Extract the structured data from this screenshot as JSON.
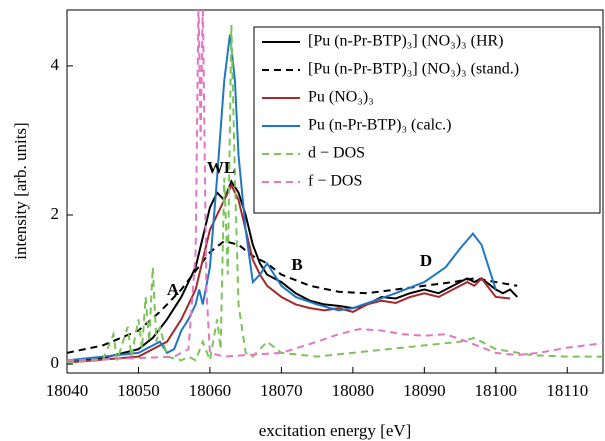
{
  "chart_data": {
    "type": "line",
    "x_label": "excitation energy [eV]",
    "y_label": "intensity [arb. units]",
    "xlim": [
      18040,
      18115
    ],
    "ylim": [
      -0.12,
      4.75
    ],
    "xticks": [
      18040,
      18050,
      18060,
      18070,
      18080,
      18090,
      18100,
      18110
    ],
    "yticks": [
      0,
      2,
      4
    ],
    "legend": "upper right",
    "annotations": [
      "A",
      "WL",
      "B",
      "D"
    ],
    "series": [
      {
        "name": "[Pu (n-Pr-BTP)₃] (NO₃)₃ (HR)",
        "color": "#000000",
        "dashed": false,
        "x": [
          18040,
          18045,
          18050,
          18052,
          18054,
          18056,
          18058,
          18059,
          18060,
          18061,
          18062,
          18063,
          18064,
          18065,
          18066,
          18067,
          18068,
          18069,
          18070,
          18072,
          18074,
          18076,
          18078,
          18080,
          18082,
          18084,
          18086,
          18088,
          18090,
          18092,
          18094,
          18096,
          18097,
          18098,
          18100,
          18101,
          18102,
          18103
        ],
        "values": [
          0.05,
          0.08,
          0.2,
          0.35,
          0.6,
          0.9,
          1.3,
          1.7,
          2.1,
          2.3,
          2.2,
          2.45,
          2.3,
          2.0,
          1.6,
          1.35,
          1.2,
          1.15,
          1.1,
          0.95,
          0.85,
          0.8,
          0.78,
          0.75,
          0.8,
          0.9,
          0.88,
          0.95,
          1.0,
          0.95,
          1.05,
          1.15,
          1.1,
          1.15,
          1.0,
          0.95,
          1.0,
          0.9
        ]
      },
      {
        "name": "[Pu (n-Pr-BTP)₃] (NO₃)₃ (stand.)",
        "color": "#000000",
        "dashed": true,
        "x": [
          18040,
          18045,
          18050,
          18053,
          18056,
          18058,
          18060,
          18062,
          18064,
          18066,
          18068,
          18070,
          18074,
          18078,
          18082,
          18086,
          18090,
          18094,
          18097,
          18100,
          18103
        ],
        "values": [
          0.15,
          0.25,
          0.45,
          0.7,
          1.0,
          1.25,
          1.5,
          1.65,
          1.6,
          1.45,
          1.35,
          1.2,
          1.05,
          0.97,
          0.95,
          1.0,
          1.05,
          1.1,
          1.15,
          1.1,
          1.05
        ]
      },
      {
        "name": "Pu (NO₃)₃",
        "color": "#a52a2a",
        "dashed": false,
        "x": [
          18040,
          18050,
          18054,
          18056,
          18058,
          18059,
          18060,
          18061,
          18062,
          18063,
          18064,
          18065,
          18066,
          18067,
          18068,
          18070,
          18072,
          18074,
          18076,
          18078,
          18080,
          18082,
          18084,
          18086,
          18088,
          18090,
          18092,
          18094,
          18096,
          18097,
          18098,
          18100,
          18102
        ],
        "values": [
          0.02,
          0.1,
          0.3,
          0.6,
          1.0,
          1.4,
          1.8,
          2.0,
          2.2,
          2.4,
          2.2,
          1.8,
          1.4,
          1.2,
          1.05,
          0.9,
          0.8,
          0.75,
          0.72,
          0.75,
          0.7,
          0.8,
          0.85,
          0.82,
          0.9,
          0.95,
          0.9,
          1.0,
          1.1,
          1.05,
          1.15,
          0.9,
          0.88
        ]
      },
      {
        "name": "Pu (n-Pr-BTP)₃ (calc.)",
        "color": "#1f77c4",
        "dashed": false,
        "x": [
          18040,
          18050,
          18053,
          18054,
          18055,
          18056,
          18057,
          18058,
          18058.5,
          18059,
          18060,
          18061,
          18062,
          18062.8,
          18063.5,
          18064,
          18065,
          18066,
          18067,
          18068,
          18069,
          18070,
          18072,
          18075,
          18078,
          18080,
          18083,
          18086,
          18090,
          18093,
          18095,
          18096.8,
          18098,
          18099,
          18100
        ],
        "values": [
          0.05,
          0.15,
          0.3,
          0.15,
          0.2,
          0.45,
          0.6,
          0.8,
          1.0,
          0.8,
          1.3,
          2.5,
          3.8,
          4.42,
          3.8,
          2.8,
          1.8,
          1.1,
          1.2,
          1.35,
          1.2,
          1.05,
          0.9,
          0.8,
          0.72,
          0.75,
          0.85,
          0.95,
          1.1,
          1.3,
          1.55,
          1.75,
          1.6,
          1.3,
          1.0
        ]
      },
      {
        "name": "d − DOS",
        "color": "#7cc45a",
        "dashed": true,
        "x": [
          18040,
          18045,
          18046.5,
          18047,
          18048.5,
          18049,
          18050,
          18050.5,
          18051,
          18051.5,
          18052,
          18052.5,
          18053,
          18054,
          18056,
          18057,
          18058,
          18059,
          18060,
          18061,
          18061.5,
          18062,
          18062.5,
          18063,
          18063.5,
          18064,
          18065,
          18066,
          18068,
          18070,
          18075,
          18080,
          18085,
          18090,
          18095,
          18097,
          18100,
          18105,
          18110,
          18115
        ],
        "values": [
          0.02,
          0.05,
          0.4,
          0.05,
          0.5,
          0.1,
          0.6,
          0.2,
          0.9,
          0.3,
          1.3,
          0.3,
          0.5,
          0.1,
          0.05,
          0.1,
          0.05,
          0.3,
          0.05,
          0.6,
          0.2,
          2.5,
          1.2,
          4.55,
          2.5,
          0.8,
          0.15,
          0.1,
          0.3,
          0.15,
          0.1,
          0.15,
          0.2,
          0.25,
          0.3,
          0.35,
          0.2,
          0.12,
          0.1,
          0.1
        ]
      },
      {
        "name": "f − DOS",
        "color": "#e377c2",
        "dashed": true,
        "x": [
          18040,
          18050,
          18055,
          18057,
          18058,
          18058.4,
          18058.7,
          18059,
          18059.5,
          18060,
          18062,
          18065,
          18070,
          18075,
          18078,
          18081,
          18084,
          18087,
          18090,
          18093,
          18096,
          18100,
          18103,
          18106,
          18110,
          18115
        ],
        "values": [
          0.05,
          0.08,
          0.1,
          0.2,
          1.5,
          4.9,
          3.0,
          4.9,
          1.0,
          0.15,
          0.1,
          0.12,
          0.15,
          0.3,
          0.4,
          0.47,
          0.45,
          0.4,
          0.38,
          0.4,
          0.3,
          0.15,
          0.12,
          0.15,
          0.22,
          0.28
        ]
      }
    ]
  }
}
